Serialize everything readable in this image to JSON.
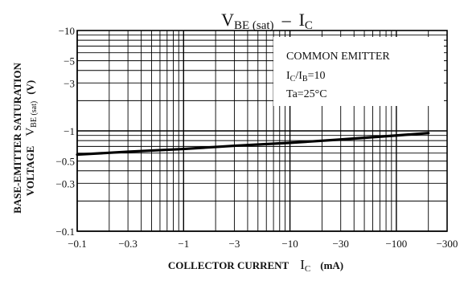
{
  "chart_data": {
    "type": "line",
    "title": {
      "main1": "V",
      "sub1": "BE (sat)",
      "dash": "–",
      "main2": "I",
      "sub2": "C"
    },
    "x_axis": {
      "scale": "log",
      "range": [
        -0.1,
        -300
      ],
      "ticks": [
        "−0.1",
        "−0.3",
        "−1",
        "−3",
        "−10",
        "−30",
        "−100",
        "−300"
      ],
      "tick_values": [
        0.1,
        0.3,
        1,
        3,
        10,
        30,
        100,
        300
      ],
      "label_main": "COLLECTOR CURRENT",
      "label_sym": "I",
      "label_sub": "C",
      "label_unit": "(mA)"
    },
    "y_axis": {
      "scale": "log",
      "range": [
        -0.1,
        -10
      ],
      "ticks": [
        "−10",
        "−5",
        "−3",
        "−1",
        "−0.5",
        "−0.3",
        "−0.1"
      ],
      "tick_values": [
        10,
        5,
        3,
        1,
        0.5,
        0.3,
        0.1
      ],
      "label_line1": "BASE-EMITTER SATURATION",
      "label_line2_text": "VOLTAGE",
      "label_line2_sym": "V",
      "label_line2_sub": "BE (sat)",
      "label_line2_unit": "(V)"
    },
    "grid": true,
    "annotation": {
      "line1": "COMMON EMITTER",
      "line2_sym": "I",
      "line2_sub1": "C",
      "line2_mid": "/I",
      "line2_sub2": "B",
      "line2_val": "=10",
      "line3": "Ta=25°C"
    },
    "series": [
      {
        "x": [
          -0.1,
          -0.3,
          -1,
          -3,
          -10,
          -30,
          -100,
          -200
        ],
        "y": [
          -0.58,
          -0.62,
          -0.66,
          -0.71,
          -0.76,
          -0.82,
          -0.9,
          -0.95
        ]
      }
    ]
  }
}
